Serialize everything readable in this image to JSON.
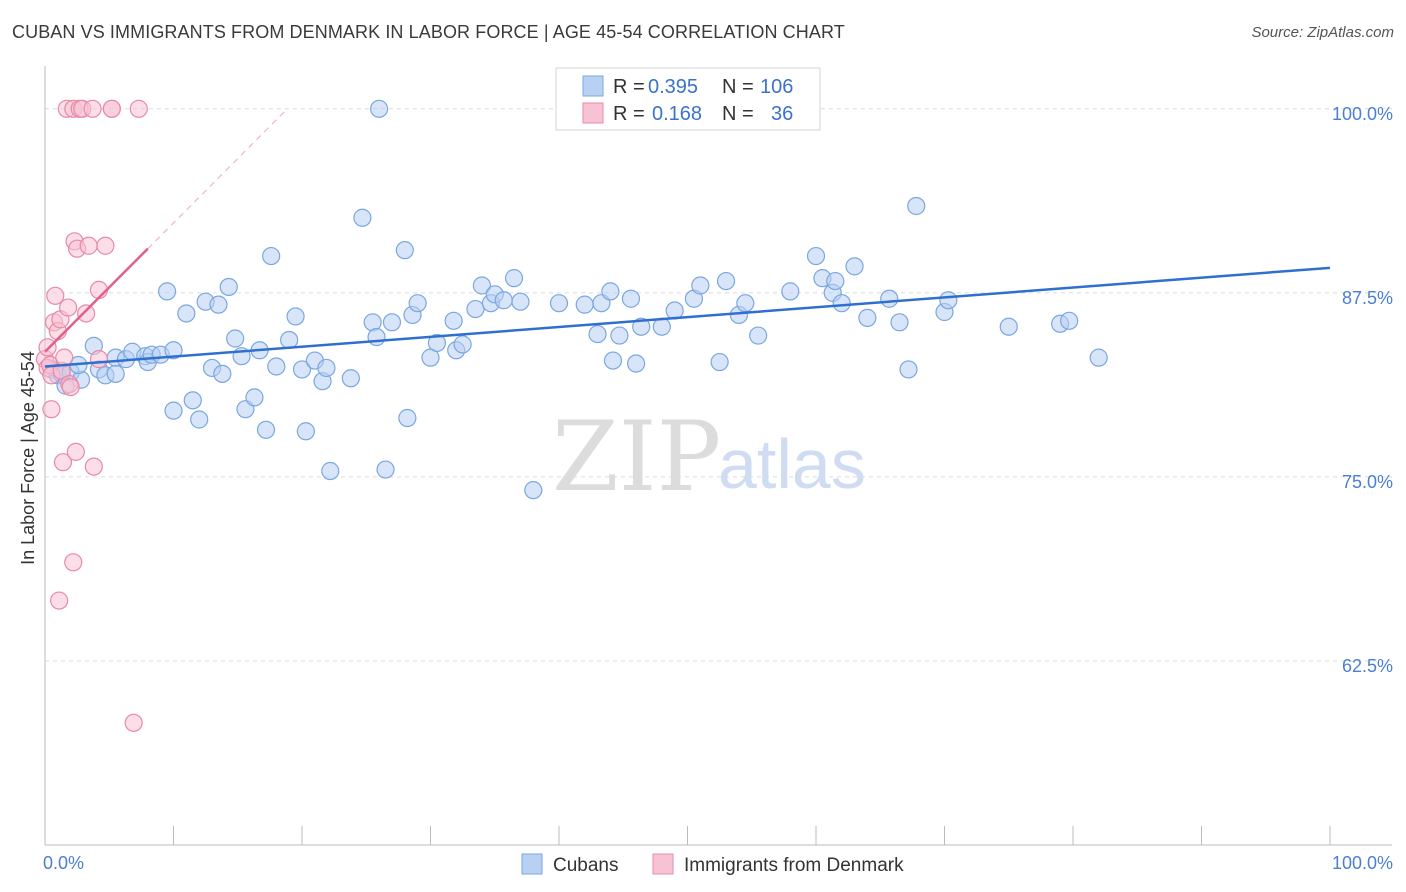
{
  "title": "CUBAN VS IMMIGRANTS FROM DENMARK IN LABOR FORCE | AGE 45-54 CORRELATION CHART",
  "source": "Source: ZipAtlas.com",
  "watermark": {
    "zip": "ZIP",
    "atlas": "atlas"
  },
  "chart_data": {
    "type": "scatter",
    "xlabel": "",
    "ylabel": "In Labor Force | Age 45-54",
    "xlim": [
      0,
      100
    ],
    "ylim": [
      50,
      102.5
    ],
    "x_tick_labels": [
      "0.0%",
      "100.0%"
    ],
    "y_ticks": [
      62.5,
      75.0,
      87.5,
      100.0
    ],
    "y_tick_labels": [
      "62.5%",
      "75.0%",
      "87.5%",
      "100.0%"
    ],
    "grid": "horizontal dashed",
    "legend_position": "top-center",
    "series": [
      {
        "name": "Cubans",
        "color": "#7aa7e0",
        "fill": "#b8d0f2",
        "R": "0.395",
        "N": "106",
        "trend": {
          "x": [
            0,
            100
          ],
          "y": [
            82.5,
            89.2
          ]
        },
        "points": [
          [
            0.5,
            82.3
          ],
          [
            1.0,
            81.9
          ],
          [
            1.3,
            82.0
          ],
          [
            1.6,
            81.2
          ],
          [
            2.0,
            82.1
          ],
          [
            2.8,
            81.6
          ],
          [
            2.6,
            82.6
          ],
          [
            3.8,
            83.9
          ],
          [
            4.2,
            82.3
          ],
          [
            4.7,
            81.9
          ],
          [
            5.5,
            82.0
          ],
          [
            5.5,
            83.1
          ],
          [
            6.3,
            83.0
          ],
          [
            6.8,
            83.5
          ],
          [
            7.8,
            83.2
          ],
          [
            8.0,
            82.8
          ],
          [
            8.3,
            83.3
          ],
          [
            9.0,
            83.3
          ],
          [
            9.5,
            87.6
          ],
          [
            10.0,
            83.6
          ],
          [
            10.0,
            79.5
          ],
          [
            11.0,
            86.1
          ],
          [
            11.5,
            80.2
          ],
          [
            12.0,
            78.9
          ],
          [
            12.5,
            86.9
          ],
          [
            13.0,
            82.4
          ],
          [
            13.5,
            86.7
          ],
          [
            13.8,
            82.0
          ],
          [
            14.3,
            87.9
          ],
          [
            14.8,
            84.4
          ],
          [
            15.3,
            83.2
          ],
          [
            15.6,
            79.6
          ],
          [
            16.3,
            80.4
          ],
          [
            16.7,
            83.6
          ],
          [
            17.2,
            78.2
          ],
          [
            17.6,
            90.0
          ],
          [
            18.0,
            82.5
          ],
          [
            19.0,
            84.3
          ],
          [
            19.5,
            85.9
          ],
          [
            20.0,
            82.3
          ],
          [
            20.3,
            78.1
          ],
          [
            21.0,
            82.9
          ],
          [
            21.6,
            81.5
          ],
          [
            21.9,
            82.4
          ],
          [
            22.2,
            75.4
          ],
          [
            23.8,
            81.7
          ],
          [
            24.7,
            92.6
          ],
          [
            25.5,
            85.5
          ],
          [
            25.8,
            84.5
          ],
          [
            26.0,
            100.0
          ],
          [
            26.5,
            75.5
          ],
          [
            27.0,
            85.5
          ],
          [
            28.0,
            90.4
          ],
          [
            28.2,
            79.0
          ],
          [
            28.6,
            86.0
          ],
          [
            29.0,
            86.8
          ],
          [
            30.0,
            83.1
          ],
          [
            30.5,
            84.1
          ],
          [
            31.8,
            85.6
          ],
          [
            32.0,
            83.6
          ],
          [
            32.5,
            84.0
          ],
          [
            33.5,
            86.4
          ],
          [
            34.0,
            88.0
          ],
          [
            34.7,
            86.8
          ],
          [
            35.0,
            87.4
          ],
          [
            35.7,
            87.0
          ],
          [
            36.5,
            88.5
          ],
          [
            37.0,
            86.9
          ],
          [
            38.0,
            74.1
          ],
          [
            40.0,
            86.8
          ],
          [
            42.0,
            86.7
          ],
          [
            43.0,
            84.7
          ],
          [
            43.3,
            86.8
          ],
          [
            44.0,
            87.6
          ],
          [
            44.2,
            82.9
          ],
          [
            44.7,
            84.6
          ],
          [
            45.6,
            87.1
          ],
          [
            46.0,
            82.7
          ],
          [
            46.4,
            85.2
          ],
          [
            48.0,
            85.2
          ],
          [
            49.0,
            86.3
          ],
          [
            50.5,
            87.1
          ],
          [
            51.0,
            88.0
          ],
          [
            52.5,
            82.8
          ],
          [
            53.0,
            88.3
          ],
          [
            54.0,
            86.0
          ],
          [
            54.5,
            86.8
          ],
          [
            55.5,
            84.6
          ],
          [
            58.0,
            87.6
          ],
          [
            60.0,
            90.0
          ],
          [
            60.5,
            88.5
          ],
          [
            61.3,
            87.5
          ],
          [
            61.5,
            88.3
          ],
          [
            62.0,
            86.8
          ],
          [
            63.0,
            89.3
          ],
          [
            64.0,
            85.8
          ],
          [
            65.7,
            87.1
          ],
          [
            66.5,
            85.5
          ],
          [
            67.2,
            82.3
          ],
          [
            67.8,
            93.4
          ],
          [
            70.0,
            86.2
          ],
          [
            70.3,
            87.0
          ],
          [
            75.0,
            85.2
          ],
          [
            79.0,
            85.4
          ],
          [
            79.7,
            85.6
          ],
          [
            82.0,
            83.1
          ]
        ]
      },
      {
        "name": "Immigrants from Denmark",
        "color": "#e889a8",
        "fill": "#f7c3d4",
        "R": "0.168",
        "N": "36",
        "trend": {
          "x": [
            0,
            8
          ],
          "y": [
            83.5,
            90.5
          ]
        },
        "points": [
          [
            0.0,
            83.0
          ],
          [
            0.2,
            82.4
          ],
          [
            0.2,
            83.8
          ],
          [
            0.4,
            82.6
          ],
          [
            0.5,
            81.9
          ],
          [
            0.5,
            79.6
          ],
          [
            0.7,
            85.5
          ],
          [
            0.8,
            87.3
          ],
          [
            1.0,
            84.9
          ],
          [
            1.1,
            66.6
          ],
          [
            1.2,
            85.7
          ],
          [
            1.3,
            82.2
          ],
          [
            1.4,
            76.0
          ],
          [
            1.5,
            83.1
          ],
          [
            1.7,
            100.0
          ],
          [
            1.8,
            86.5
          ],
          [
            1.9,
            81.3
          ],
          [
            2.0,
            81.1
          ],
          [
            2.2,
            69.2
          ],
          [
            2.2,
            100.0
          ],
          [
            2.3,
            91.0
          ],
          [
            2.4,
            76.7
          ],
          [
            2.5,
            90.5
          ],
          [
            2.7,
            100.0
          ],
          [
            2.9,
            100.0
          ],
          [
            3.2,
            86.1
          ],
          [
            3.4,
            90.7
          ],
          [
            3.7,
            100.0
          ],
          [
            3.8,
            75.7
          ],
          [
            4.2,
            87.7
          ],
          [
            4.2,
            83.0
          ],
          [
            4.7,
            90.7
          ],
          [
            5.2,
            100.0
          ],
          [
            5.2,
            100.0
          ],
          [
            6.9,
            58.3
          ],
          [
            7.3,
            100.0
          ]
        ]
      }
    ]
  },
  "legend": {
    "r_label": "R =",
    "n_label": "N =",
    "rows": [
      {
        "r": "0.395",
        "n": "106"
      },
      {
        "r": "0.168",
        "n": "36"
      }
    ]
  },
  "bottom_legend": [
    "Cubans",
    "Immigrants from Denmark"
  ]
}
